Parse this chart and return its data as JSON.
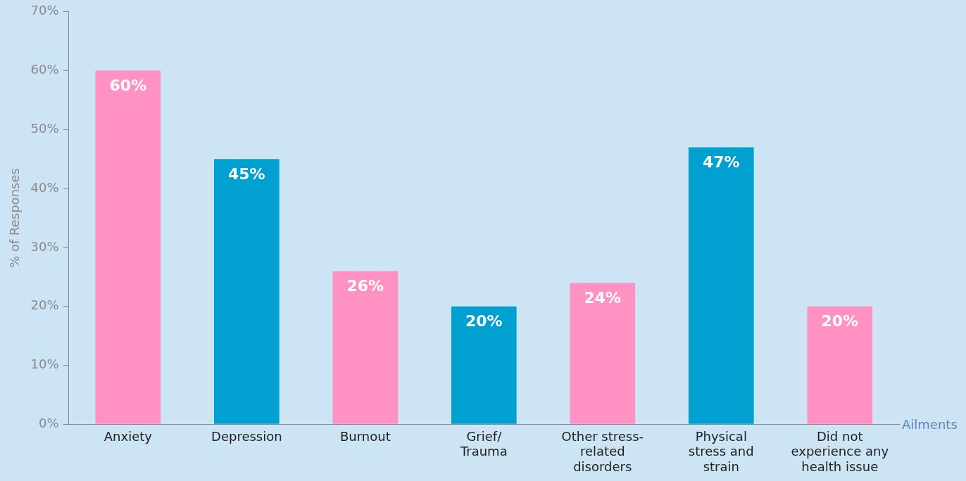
{
  "chart_data": {
    "type": "bar",
    "ylabel": "% of Responses",
    "xlabel": "Ailments",
    "categories": [
      "Anxiety",
      "Depression",
      "Burnout",
      "Grief/Trauma",
      "Other stress-related disorders",
      "Physical stress and strain",
      "Did not experience any health issue"
    ],
    "values": [
      60,
      45,
      26,
      20,
      24,
      47,
      20
    ],
    "colors": [
      "#ff91c3",
      "#00a0d0",
      "#ff91c3",
      "#00a0d0",
      "#ff91c3",
      "#00a0d0",
      "#ff91c3"
    ],
    "ylim": [
      0,
      70
    ],
    "yticks": [
      {
        "value": 0,
        "label": "0%"
      },
      {
        "value": 10,
        "label": "10%"
      },
      {
        "value": 20,
        "label": "20%"
      },
      {
        "value": 30,
        "label": "30%"
      },
      {
        "value": 40,
        "label": "40%"
      },
      {
        "value": 50,
        "label": "50%"
      },
      {
        "value": 60,
        "label": "60%"
      },
      {
        "value": 70,
        "label": "70%"
      }
    ],
    "data_labels": true,
    "value_labels": [
      "60%",
      "45%",
      "26%",
      "20%",
      "24%",
      "47%",
      "20%"
    ],
    "grid": false,
    "legend": false
  }
}
